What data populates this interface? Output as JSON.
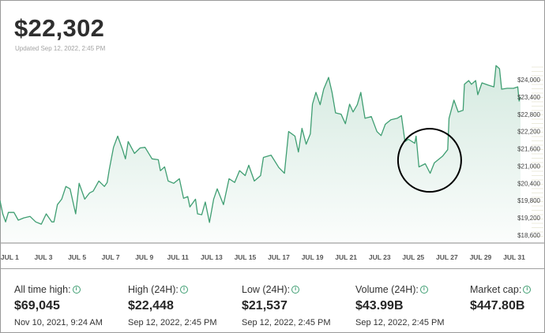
{
  "header": {
    "price": "$22,302",
    "updated": "Updated Sep 12, 2022, 2:45 PM"
  },
  "chart_data": {
    "type": "area",
    "line_color": "#3f9e72",
    "fill_color": "#3f9e72",
    "grid": false,
    "xlim": [
      "Jun 30 10:00",
      "Jul 31 09:00"
    ],
    "ylim": [
      18600,
      24000
    ],
    "y_ticks": [
      "$24,000",
      "$23,400",
      "$22,800",
      "$22,200",
      "$21,600",
      "$21,000",
      "$20,400",
      "$19,800",
      "$19,200",
      "$18,600"
    ],
    "y_tick_values": [
      24000,
      23400,
      22800,
      22200,
      21600,
      21000,
      20400,
      19800,
      19200,
      18600
    ],
    "x_ticks": [
      "JUL 1",
      "JUL 3",
      "JUL 5",
      "JUL 7",
      "JUL 9",
      "JUL 11",
      "JUL 13",
      "JUL 15",
      "JUL 17",
      "JUL 19",
      "JUL 21",
      "JUL 23",
      "JUL 25",
      "JUL 27",
      "JUL 29",
      "JUL 31"
    ],
    "x_tick_dates": [
      "Jul 1 00:00",
      "Jul 3 00:00",
      "Jul 5 00:00",
      "Jul 7 00:00",
      "Jul 9 00:00",
      "Jul 11 00:00",
      "Jul 13 00:00",
      "Jul 15 00:00",
      "Jul 17 00:00",
      "Jul 19 00:00",
      "Jul 21 00:00",
      "Jul 23 00:00",
      "Jul 25 00:00",
      "Jul 27 00:00",
      "Jul 29 00:00",
      "Jul 31 00:00"
    ],
    "annotation": {
      "type": "circle",
      "center": [
        "Jul 26 06:00",
        21200
      ],
      "color": "#000000"
    },
    "points": [
      [
        "Jun 30 10:00",
        19800
      ],
      [
        "Jun 30 14:00",
        19340
      ],
      [
        "Jun 30 18:00",
        19060
      ],
      [
        "Jun 30 22:00",
        19390
      ],
      [
        "Jul 1 06:00",
        19390
      ],
      [
        "Jul 1 12:00",
        19120
      ],
      [
        "Jul 1 20:00",
        19200
      ],
      [
        "Jul 2 05:00",
        19250
      ],
      [
        "Jul 2 13:00",
        19060
      ],
      [
        "Jul 2 21:00",
        18980
      ],
      [
        "Jul 3 04:00",
        19340
      ],
      [
        "Jul 3 12:00",
        19060
      ],
      [
        "Jul 3 15:00",
        19060
      ],
      [
        "Jul 3 20:00",
        19660
      ],
      [
        "Jul 4 02:00",
        19850
      ],
      [
        "Jul 4 08:00",
        20290
      ],
      [
        "Jul 4 14:00",
        20210
      ],
      [
        "Jul 4 22:00",
        19340
      ],
      [
        "Jul 5 03:00",
        20400
      ],
      [
        "Jul 5 11:00",
        19850
      ],
      [
        "Jul 5 18:00",
        20070
      ],
      [
        "Jul 5 23:00",
        20130
      ],
      [
        "Jul 6 07:00",
        20480
      ],
      [
        "Jul 6 15:00",
        20290
      ],
      [
        "Jul 6 19:00",
        20430
      ],
      [
        "Jul 6 22:00",
        20890
      ],
      [
        "Jul 7 04:00",
        21650
      ],
      [
        "Jul 7 10:00",
        22040
      ],
      [
        "Jul 7 17:00",
        21570
      ],
      [
        "Jul 7 21:00",
        21250
      ],
      [
        "Jul 8 01:00",
        21850
      ],
      [
        "Jul 8 10:00",
        21440
      ],
      [
        "Jul 8 18:00",
        21630
      ],
      [
        "Jul 9 01:00",
        21650
      ],
      [
        "Jul 9 11:00",
        21250
      ],
      [
        "Jul 9 20:00",
        21220
      ],
      [
        "Jul 9 23:00",
        20840
      ],
      [
        "Jul 10 05:00",
        20970
      ],
      [
        "Jul 10 10:00",
        20480
      ],
      [
        "Jul 10 18:00",
        20400
      ],
      [
        "Jul 11 02:00",
        20560
      ],
      [
        "Jul 11 08:00",
        19880
      ],
      [
        "Jul 11 14:00",
        19940
      ],
      [
        "Jul 11 17:00",
        19580
      ],
      [
        "Jul 12 01:00",
        19850
      ],
      [
        "Jul 12 04:00",
        19340
      ],
      [
        "Jul 12 10:00",
        19310
      ],
      [
        "Jul 12 15:00",
        19750
      ],
      [
        "Jul 12 21:00",
        19040
      ],
      [
        "Jul 13 03:00",
        19850
      ],
      [
        "Jul 13 08:00",
        20210
      ],
      [
        "Jul 13 17:00",
        19660
      ],
      [
        "Jul 14 01:00",
        20560
      ],
      [
        "Jul 14 09:00",
        20430
      ],
      [
        "Jul 14 16:00",
        20840
      ],
      [
        "Jul 15 00:00",
        20670
      ],
      [
        "Jul 15 05:00",
        21030
      ],
      [
        "Jul 15 13:00",
        20480
      ],
      [
        "Jul 15 22:00",
        20670
      ],
      [
        "Jul 16 02:00",
        21300
      ],
      [
        "Jul 16 13:00",
        21380
      ],
      [
        "Jul 17 00:00",
        20950
      ],
      [
        "Jul 17 08:00",
        20750
      ],
      [
        "Jul 17 14:00",
        22200
      ],
      [
        "Jul 17 23:00",
        22040
      ],
      [
        "Jul 18 04:00",
        21490
      ],
      [
        "Jul 18 09:00",
        22310
      ],
      [
        "Jul 18 15:00",
        21760
      ],
      [
        "Jul 18 21:00",
        22120
      ],
      [
        "Jul 19 00:00",
        23150
      ],
      [
        "Jul 19 05:00",
        23560
      ],
      [
        "Jul 19 11:00",
        23130
      ],
      [
        "Jul 19 16:00",
        23670
      ],
      [
        "Jul 19 23:00",
        24080
      ],
      [
        "Jul 20 04:00",
        23560
      ],
      [
        "Jul 20 09:00",
        22850
      ],
      [
        "Jul 20 17:00",
        22800
      ],
      [
        "Jul 20 23:00",
        22470
      ],
      [
        "Jul 21 05:00",
        23150
      ],
      [
        "Jul 21 10:00",
        22880
      ],
      [
        "Jul 21 16:00",
        23130
      ],
      [
        "Jul 21 21:00",
        23560
      ],
      [
        "Jul 22 03:00",
        22660
      ],
      [
        "Jul 22 12:00",
        22720
      ],
      [
        "Jul 22 20:00",
        22200
      ],
      [
        "Jul 23 02:00",
        22060
      ],
      [
        "Jul 23 08:00",
        22450
      ],
      [
        "Jul 23 16:00",
        22610
      ],
      [
        "Jul 24 01:00",
        22660
      ],
      [
        "Jul 24 07:00",
        22750
      ],
      [
        "Jul 24 12:00",
        21850
      ],
      [
        "Jul 24 17:00",
        21930
      ],
      [
        "Jul 25 02:00",
        21790
      ],
      [
        "Jul 25 04:00",
        22040
      ],
      [
        "Jul 25 08:00",
        20970
      ],
      [
        "Jul 25 17:00",
        21080
      ],
      [
        "Jul 26 00:00",
        20750
      ],
      [
        "Jul 26 06:00",
        21110
      ],
      [
        "Jul 26 18:00",
        21350
      ],
      [
        "Jul 27 01:00",
        21570
      ],
      [
        "Jul 27 03:00",
        22660
      ],
      [
        "Jul 27 10:00",
        23290
      ],
      [
        "Jul 27 16:00",
        22880
      ],
      [
        "Jul 27 23:00",
        22940
      ],
      [
        "Jul 28 01:00",
        23840
      ],
      [
        "Jul 28 07:00",
        23970
      ],
      [
        "Jul 28 11:00",
        23840
      ],
      [
        "Jul 28 17:00",
        23970
      ],
      [
        "Jul 28 20:00",
        23480
      ],
      [
        "Jul 29 02:00",
        23890
      ],
      [
        "Jul 29 11:00",
        23810
      ],
      [
        "Jul 29 19:00",
        23750
      ],
      [
        "Jul 29 22:00",
        24490
      ],
      [
        "Jul 30 03:00",
        24380
      ],
      [
        "Jul 30 06:00",
        23670
      ],
      [
        "Jul 30 14:00",
        23700
      ],
      [
        "Jul 30 23:00",
        23700
      ],
      [
        "Jul 31 05:00",
        23750
      ],
      [
        "Jul 31 07:00",
        23260
      ],
      [
        "Jul 31 09:00",
        23400
      ]
    ]
  },
  "stats": [
    {
      "label": "All time high:",
      "value": "$69,045",
      "date": "Nov 10, 2021, 9:24 AM",
      "icon": "info-icon"
    },
    {
      "label": "High (24H):",
      "value": "$22,448",
      "date": "Sep 12, 2022, 2:45 PM",
      "icon": "info-icon"
    },
    {
      "label": "Low (24H):",
      "value": "$21,537",
      "date": "Sep 12, 2022, 2:45 PM",
      "icon": "info-icon"
    },
    {
      "label": "Volume (24H):",
      "value": "$43.99B",
      "date": "Sep 12, 2022, 2:45 PM",
      "icon": "info-icon"
    },
    {
      "label": "Market cap:",
      "value": "$447.80B",
      "date": "",
      "icon": "info-icon"
    }
  ]
}
